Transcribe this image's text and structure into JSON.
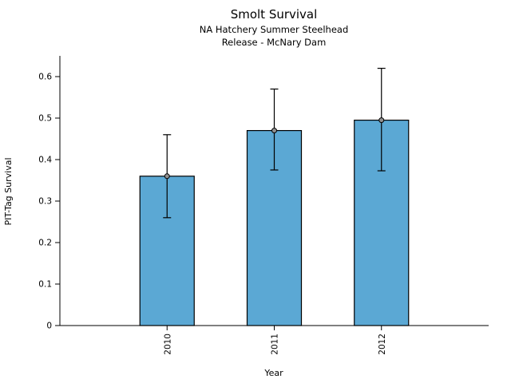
{
  "chart_data": {
    "type": "bar",
    "title": "Smolt Survival",
    "subtitle": [
      "NA Hatchery Summer Steelhead",
      "Release - McNary Dam"
    ],
    "categories": [
      "2010",
      "2011",
      "2012"
    ],
    "values": [
      0.36,
      0.47,
      0.495
    ],
    "error_lower": [
      0.26,
      0.375,
      0.373
    ],
    "error_upper": [
      0.46,
      0.57,
      0.62
    ],
    "xlabel": "Year",
    "ylabel": "PIT-Tag Survival",
    "ylim": [
      0,
      0.65
    ],
    "yticks": [
      0,
      0.1,
      0.2,
      0.3,
      0.4,
      0.5,
      0.6
    ],
    "ytick_labels": [
      "0",
      "0.1",
      "0.2",
      "0.3",
      "0.4",
      "0.5",
      "0.6"
    ],
    "bar_color": "#5BA8D4",
    "bar_edge_color": "#000000",
    "error_color": "#000000",
    "marker": "circle",
    "grid": false,
    "legend": null
  }
}
